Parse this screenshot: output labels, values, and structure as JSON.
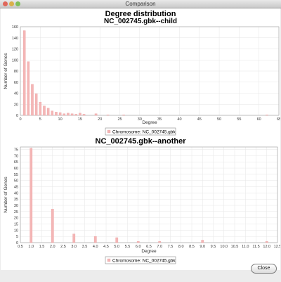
{
  "window": {
    "title": "Comparison"
  },
  "buttons": {
    "close": "Close"
  },
  "colors": {
    "bar": "#f4b6b6",
    "bar_stroke": "#e99a9a",
    "grid": "#e6e6e6",
    "axis": "#999999",
    "text": "#333333"
  },
  "chart_data": [
    {
      "type": "bar",
      "title": "Degree distribution",
      "subtitle": "NC_002745.gbk--child",
      "xlabel": "Degree",
      "ylabel": "Number of Genes",
      "xlim": [
        0,
        65
      ],
      "ylim": [
        0,
        160
      ],
      "xticks": [
        0,
        5,
        10,
        15,
        20,
        25,
        30,
        35,
        40,
        45,
        50,
        55,
        60,
        65
      ],
      "yticks": [
        0,
        20,
        40,
        60,
        80,
        100,
        120,
        140,
        160
      ],
      "x": [
        1,
        2,
        3,
        4,
        5,
        6,
        7,
        8,
        9,
        10,
        11,
        12,
        13,
        14,
        15,
        16,
        19,
        22,
        26,
        62
      ],
      "values": [
        153,
        97,
        56,
        39,
        24,
        17,
        13,
        8,
        6,
        5,
        3,
        4,
        3,
        2,
        4,
        2,
        3,
        1,
        1,
        1
      ],
      "legend": "Chromosome: NC_002745.gbk"
    },
    {
      "type": "bar",
      "title": "NC_002745.gbk--another",
      "xlabel": "Degree",
      "ylabel": "Number of Genes",
      "xlim": [
        0.5,
        12.5
      ],
      "ylim": [
        0,
        77
      ],
      "xticks": [
        "0.5",
        "1.0",
        "1.5",
        "2.0",
        "2.5",
        "3.0",
        "3.5",
        "4.0",
        "4.5",
        "5.0",
        "5.5",
        "6.0",
        "6.5",
        "7.0",
        "7.5",
        "8.0",
        "8.5",
        "9.0",
        "9.5",
        "10.0",
        "10.5",
        "11.0",
        "11.5",
        "12.0",
        "12.5"
      ],
      "yticks": [
        0,
        5,
        10,
        15,
        20,
        25,
        30,
        35,
        40,
        45,
        50,
        55,
        60,
        65,
        70,
        75
      ],
      "x": [
        1,
        2,
        3,
        4,
        5,
        6,
        7,
        9,
        12
      ],
      "values": [
        76,
        27,
        7,
        5,
        4,
        1,
        1,
        2,
        1
      ],
      "legend": "Chromosome: NC_002745.gbk"
    }
  ]
}
